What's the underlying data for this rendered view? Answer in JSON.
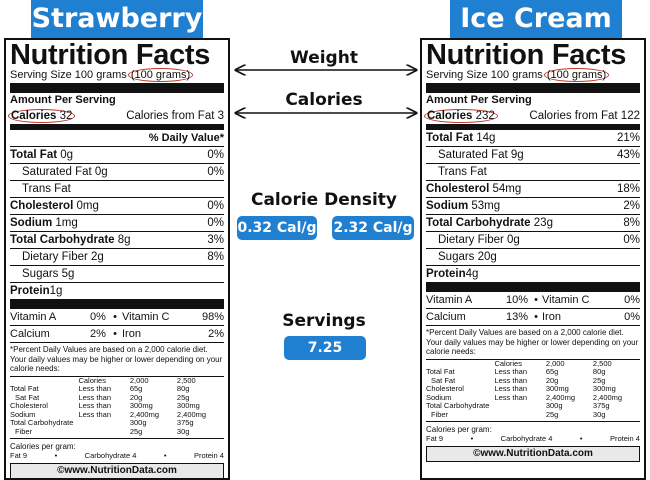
{
  "headers": {
    "left": "Strawberry",
    "right": "Ice Cream"
  },
  "labels": {
    "weight": "Weight",
    "calories": "Calories",
    "calorie_density": "Calorie Density",
    "servings": "Servings"
  },
  "density": {
    "left": "0.32 Cal/g",
    "right": "2.32 Cal/g"
  },
  "servings_value": "7.25",
  "common": {
    "title": "Nutrition Facts",
    "serving_prefix": "Serving Size 100 grams",
    "serving_paren": "(100 grams)",
    "amount_per_serving": "Amount Per Serving",
    "calories_label": "Calories",
    "dv_header": "% Daily Value*",
    "total_fat": "Total Fat",
    "saturated_fat": "Saturated Fat",
    "trans_fat": "Trans Fat",
    "cholesterol": "Cholesterol",
    "sodium": "Sodium",
    "total_carb": "Total Carbohydrate",
    "dietary_fiber": "Dietary Fiber",
    "sugars": "Sugars",
    "protein": "Protein",
    "vitamin_a": "Vitamin A",
    "vitamin_c": "Vitamin C",
    "calcium": "Calcium",
    "iron": "Iron",
    "bullet": "•",
    "footnote": "*Percent Daily Values are based on a 2,000 calorie diet. Your daily values may be higher or lower depending on your calorie needs:",
    "ref_table": [
      [
        "",
        "Calories",
        "2,000",
        "2,500"
      ],
      [
        "Total Fat",
        "Less than",
        "65g",
        "80g"
      ],
      [
        "  Sat Fat",
        "Less than",
        "20g",
        "25g"
      ],
      [
        "Cholesterol",
        "Less than",
        "300mg",
        "300mg"
      ],
      [
        "Sodium",
        "Less than",
        "2,400mg",
        "2,400mg"
      ],
      [
        "Total Carbohydrate",
        "",
        "300g",
        "375g"
      ],
      [
        "  Fiber",
        "",
        "25g",
        "30g"
      ]
    ],
    "cal_per_gram": "Calories per gram:",
    "cal_fat": "Fat 9",
    "cal_carb": "Carbohydrate 4",
    "cal_protein": "Protein 4",
    "site": "©www.NutritionData.com"
  },
  "left": {
    "calories": "32",
    "calories_from_fat": "Calories from Fat 3",
    "total_fat": "0g",
    "total_fat_dv": "0%",
    "saturated_fat": "0g",
    "saturated_fat_dv": "0%",
    "cholesterol": "0mg",
    "cholesterol_dv": "0%",
    "sodium": "1mg",
    "sodium_dv": "0%",
    "total_carb": "8g",
    "total_carb_dv": "3%",
    "fiber": "2g",
    "fiber_dv": "8%",
    "sugars": "5g",
    "protein": "1g",
    "vit_a": "0%",
    "vit_c": "98%",
    "calcium": "2%",
    "iron": "2%"
  },
  "right": {
    "calories": "232",
    "calories_from_fat": "Calories from Fat 122",
    "total_fat": "14g",
    "total_fat_dv": "21%",
    "saturated_fat": "9g",
    "saturated_fat_dv": "43%",
    "cholesterol": "54mg",
    "cholesterol_dv": "18%",
    "sodium": "53mg",
    "sodium_dv": "2%",
    "total_carb": "23g",
    "total_carb_dv": "8%",
    "fiber": "0g",
    "fiber_dv": "0%",
    "sugars": "20g",
    "protein": "4g",
    "vit_a": "10%",
    "vit_c": "0%",
    "calcium": "13%",
    "iron": "0%"
  }
}
